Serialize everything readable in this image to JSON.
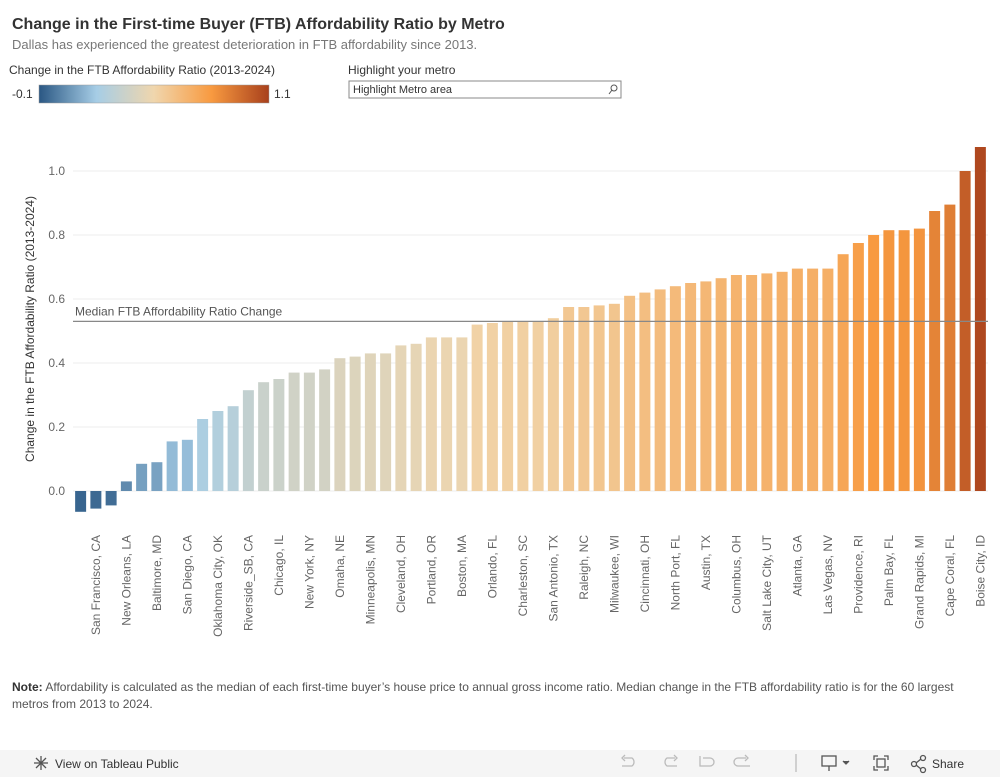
{
  "header": {
    "title": "Change in the First-time Buyer (FTB) Affordability Ratio by Metro",
    "subtitle": "Dallas has experienced the greatest deterioration in FTB affordability since 2013.",
    "legend_title": "Change in the FTB Affordability Ratio (2013-2024)",
    "legend_min": {
      "value": -0.1,
      "label": "-0.1"
    },
    "legend_max": 1.1,
    "highlight_title": "Highlight your metro",
    "highlight_placeholder": "Highlight Metro area"
  },
  "chart_data": {
    "type": "bar",
    "y_label": "Change in the FTB Affordability Ratio (2013-2024)",
    "categories": [
      null,
      "San Francisco, CA",
      null,
      "New Orleans, LA",
      null,
      "Baltimore, MD",
      null,
      "San Diego, CA",
      null,
      "Oklahoma City, OK",
      null,
      "Riverside_SB, CA",
      null,
      "Chicago, IL",
      null,
      "New York, NY",
      null,
      "Omaha, NE",
      null,
      "Minneapolis, MN",
      null,
      "Cleveland, OH",
      null,
      "Portland, OR",
      null,
      "Boston, MA",
      null,
      "Orlando, FL",
      null,
      "Charleston, SC",
      null,
      "San Antonio, TX",
      null,
      "Raleigh, NC",
      null,
      "Milwaukee, WI",
      null,
      "Cincinnati, OH",
      null,
      "North Port, FL",
      null,
      "Austin, TX",
      null,
      "Columbus, OH",
      null,
      "Salt Lake City, UT",
      null,
      "Atlanta, GA",
      null,
      "Las Vegas, NV",
      null,
      "Providence, RI",
      null,
      "Palm Bay, FL",
      null,
      "Grand Rapids, MI",
      null,
      "Cape Coral, FL",
      null,
      "Boise City, ID"
    ],
    "values": [
      -0.065,
      -0.055,
      -0.045,
      0.03,
      0.085,
      0.09,
      0.155,
      0.16,
      0.225,
      0.25,
      0.265,
      0.315,
      0.34,
      0.35,
      0.37,
      0.37,
      0.38,
      0.415,
      0.42,
      0.43,
      0.43,
      0.455,
      0.46,
      0.48,
      0.48,
      0.48,
      0.52,
      0.525,
      0.53,
      0.53,
      0.53,
      0.54,
      0.575,
      0.575,
      0.58,
      0.585,
      0.61,
      0.62,
      0.63,
      0.64,
      0.65,
      0.655,
      0.665,
      0.675,
      0.675,
      0.68,
      0.685,
      0.695,
      0.695,
      0.695,
      0.74,
      0.775,
      0.8,
      0.815,
      0.815,
      0.82,
      0.875,
      0.895,
      1.0,
      1.075
    ],
    "color_scale": {
      "min": -0.1,
      "max": 1.1,
      "colors": [
        "#2a5783",
        "#a6cde6",
        "#f0d6ad",
        "#f89a40",
        "#a8401c"
      ]
    },
    "ylim": [
      -0.115,
      1.13
    ],
    "yticks": [
      {
        "value": 0,
        "label": "0.0"
      },
      0.2,
      0.4,
      0.6,
      0.8,
      {
        "value": 1,
        "label": "1.0"
      }
    ],
    "grid": true,
    "median": {
      "label": "Median FTB Affordability Ratio Change",
      "value": 0.53
    }
  },
  "note": {
    "label": "Note:",
    "text": "Affordability is calculated as the median of each first-time buyer’s house price to annual gross income ratio. Median change in the FTB affordability ratio is for the 60 largest metros from 2013 to 2024."
  },
  "footer": {
    "link": "View on Tableau Public",
    "share": "Share"
  }
}
